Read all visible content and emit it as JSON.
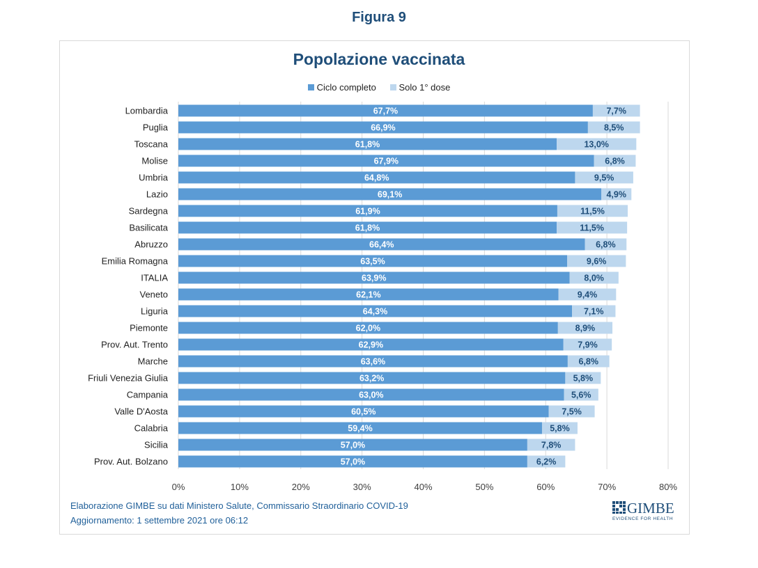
{
  "figure_label": "Figura 9",
  "chart_data": {
    "type": "bar",
    "orientation": "horizontal",
    "stacked": true,
    "title": "Popolazione vaccinata",
    "xlabel": "",
    "ylabel": "",
    "xlim": [
      0,
      80
    ],
    "grid": true,
    "legend_position": "top",
    "x_ticks": [
      "0%",
      "10%",
      "20%",
      "30%",
      "40%",
      "50%",
      "60%",
      "70%",
      "80%"
    ],
    "x_tick_values": [
      0,
      10,
      20,
      30,
      40,
      50,
      60,
      70,
      80
    ],
    "categories": [
      "Lombardia",
      "Puglia",
      "Toscana",
      "Molise",
      "Umbria",
      "Lazio",
      "Sardegna",
      "Basilicata",
      "Abruzzo",
      "Emilia Romagna",
      "ITALIA",
      "Veneto",
      "Liguria",
      "Piemonte",
      "Prov. Aut. Trento",
      "Marche",
      "Friuli Venezia Giulia",
      "Campania",
      "Valle D'Aosta",
      "Calabria",
      "Sicilia",
      "Prov. Aut. Bolzano"
    ],
    "series": [
      {
        "name": "Ciclo completo",
        "color": "#5b9bd5",
        "label_color": "#ffffff",
        "values": [
          67.7,
          66.9,
          61.8,
          67.9,
          64.8,
          69.1,
          61.9,
          61.8,
          66.4,
          63.5,
          63.9,
          62.1,
          64.3,
          62.0,
          62.9,
          63.6,
          63.2,
          63.0,
          60.5,
          59.4,
          57.0,
          57.0
        ],
        "labels": [
          "67,7%",
          "66,9%",
          "61,8%",
          "67,9%",
          "64,8%",
          "69,1%",
          "61,9%",
          "61,8%",
          "66,4%",
          "63,5%",
          "63,9%",
          "62,1%",
          "64,3%",
          "62,0%",
          "62,9%",
          "63,6%",
          "63,2%",
          "63,0%",
          "60,5%",
          "59,4%",
          "57,0%",
          "57,0%"
        ]
      },
      {
        "name": "Solo 1° dose",
        "color": "#bdd7ee",
        "label_color": "#1f4e79",
        "values": [
          7.7,
          8.5,
          13.0,
          6.8,
          9.5,
          4.9,
          11.5,
          11.5,
          6.8,
          9.6,
          8.0,
          9.4,
          7.1,
          8.9,
          7.9,
          6.8,
          5.8,
          5.6,
          7.5,
          5.8,
          7.8,
          6.2
        ],
        "labels": [
          "7,7%",
          "8,5%",
          "13,0%",
          "6,8%",
          "9,5%",
          "4,9%",
          "11,5%",
          "11,5%",
          "6,8%",
          "9,6%",
          "8,0%",
          "9,4%",
          "7,1%",
          "8,9%",
          "7,9%",
          "6,8%",
          "5,8%",
          "5,6%",
          "7,5%",
          "5,8%",
          "7,8%",
          "6,2%"
        ]
      }
    ]
  },
  "footer": {
    "source": "Elaborazione GIMBE su dati Ministero Salute, Commissario Straordinario COVID-19",
    "update": "Aggiornamento: 1 settembre 2021 ore 06:12"
  },
  "logo": {
    "name": "GIMBE",
    "tagline": "EVIDENCE FOR HEALTH"
  }
}
